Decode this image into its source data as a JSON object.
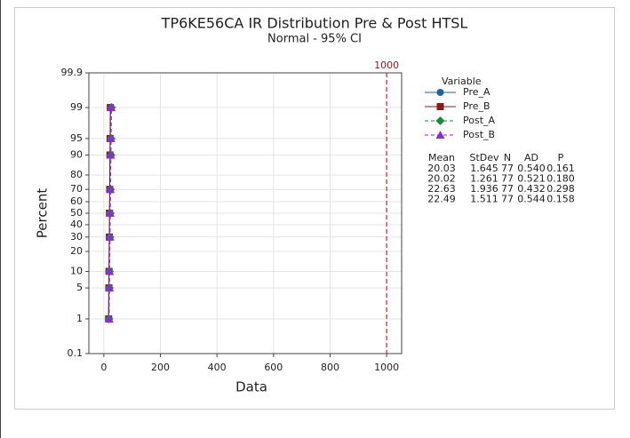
{
  "chart_data": {
    "type": "probability",
    "title": "TP6KE56CA IR Distribution Pre & Post HTSL",
    "subtitle": "Normal - 95% CI",
    "x_label": "Data",
    "y_label": "Percent",
    "xlim": [
      -53,
      1053
    ],
    "xticks": [
      0,
      200,
      400,
      600,
      800,
      1000
    ],
    "ylim": [
      0.1,
      99.9
    ],
    "yticks": [
      0.1,
      1,
      5,
      10,
      20,
      30,
      40,
      50,
      60,
      70,
      80,
      90,
      95,
      99,
      99.9
    ],
    "grid": true,
    "reference_line": 1000,
    "legend_title": "Variable",
    "series": [
      {
        "name": "Pre_A",
        "color": "#1f5fa8",
        "marker": "circle",
        "dash": false,
        "x": [
          16.2,
          17.3,
          17.9,
          19.2,
          20.0,
          20.9,
          22.1,
          22.7,
          23.9
        ],
        "values": [
          1,
          5,
          10,
          30,
          50,
          70,
          90,
          95,
          99
        ]
      },
      {
        "name": "Pre_B",
        "color": "#8b1a1a",
        "marker": "square",
        "dash": false,
        "x": [
          17.1,
          17.9,
          18.4,
          19.4,
          20.0,
          20.7,
          21.6,
          22.1,
          22.9
        ],
        "values": [
          1,
          5,
          10,
          30,
          50,
          70,
          90,
          95,
          99
        ]
      },
      {
        "name": "Post_A",
        "color": "#1a8c3a",
        "marker": "diamond",
        "dash": true,
        "x": [
          18.1,
          19.4,
          20.1,
          21.6,
          22.6,
          23.6,
          25.1,
          25.8,
          27.1
        ],
        "values": [
          1,
          5,
          10,
          30,
          50,
          70,
          90,
          95,
          99
        ]
      },
      {
        "name": "Post_B",
        "color": "#8a2be2",
        "marker": "triangle",
        "dash": true,
        "x": [
          19.0,
          20.0,
          20.6,
          21.7,
          22.5,
          23.3,
          24.4,
          25.0,
          26.0
        ],
        "values": [
          1,
          5,
          10,
          30,
          50,
          70,
          90,
          95,
          99
        ]
      }
    ],
    "stats": {
      "headers": [
        "Mean",
        "StDev",
        "N",
        "AD",
        "P"
      ],
      "rows": [
        [
          "20.03",
          "1.645",
          "77",
          "0.540",
          "0.161"
        ],
        [
          "20.02",
          "1.261",
          "77",
          "0.521",
          "0.180"
        ],
        [
          "22.63",
          "1.936",
          "77",
          "0.432",
          "0.298"
        ],
        [
          "22.49",
          "1.511",
          "77",
          "0.544",
          "0.158"
        ]
      ]
    }
  }
}
